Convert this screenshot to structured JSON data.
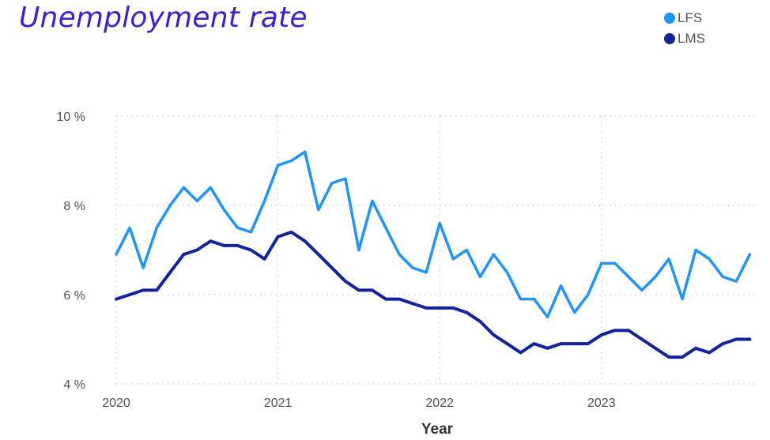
{
  "chart_data": {
    "type": "line",
    "title": "Unemployment rate",
    "xlabel": "Year",
    "ylabel": "",
    "ylim": [
      4,
      10
    ],
    "y_ticks": [
      "4 %",
      "6 %",
      "8 %",
      "10 %"
    ],
    "y_tick_values": [
      4,
      6,
      8,
      10
    ],
    "x_ticks": [
      "2020",
      "2021",
      "2022",
      "2023"
    ],
    "x_tick_values": [
      0,
      12,
      24,
      36
    ],
    "xlim": [
      0,
      47
    ],
    "grid": "dotted",
    "legend_position": "top-right",
    "series": [
      {
        "name": "LFS",
        "color": "#1f93ff",
        "values": [
          6.9,
          7.5,
          6.6,
          7.5,
          8.0,
          8.4,
          8.1,
          8.4,
          7.9,
          7.5,
          7.4,
          8.1,
          8.9,
          9.0,
          9.2,
          7.9,
          8.5,
          8.6,
          7.0,
          8.1,
          7.5,
          6.9,
          6.6,
          6.5,
          7.6,
          6.8,
          7.0,
          6.4,
          6.9,
          6.5,
          5.9,
          5.9,
          5.5,
          6.2,
          5.6,
          6.0,
          6.7,
          6.7,
          6.4,
          6.1,
          6.4,
          6.8,
          5.9,
          7.0,
          6.8,
          6.4,
          6.3,
          6.9
        ]
      },
      {
        "name": "LMS",
        "color": "#12239e",
        "values": [
          5.9,
          6.0,
          6.1,
          6.1,
          6.5,
          6.9,
          7.0,
          7.2,
          7.1,
          7.1,
          7.0,
          6.8,
          7.3,
          7.4,
          7.2,
          6.9,
          6.6,
          6.3,
          6.1,
          6.1,
          5.9,
          5.9,
          5.8,
          5.7,
          5.7,
          5.7,
          5.6,
          5.4,
          5.1,
          4.9,
          4.7,
          4.9,
          4.8,
          4.9,
          4.9,
          4.9,
          5.1,
          5.2,
          5.2,
          5.0,
          4.8,
          4.6,
          4.6,
          4.8,
          4.7,
          4.9,
          5.0,
          5.0
        ]
      }
    ]
  }
}
